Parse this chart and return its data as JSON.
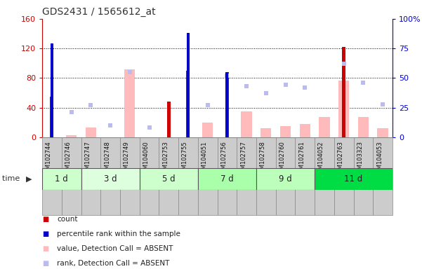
{
  "title": "GDS2431 / 1565612_at",
  "samples": [
    "GSM102744",
    "GSM102746",
    "GSM102747",
    "GSM102748",
    "GSM102749",
    "GSM104060",
    "GSM102753",
    "GSM102755",
    "GSM104051",
    "GSM102756",
    "GSM102757",
    "GSM102758",
    "GSM102760",
    "GSM102761",
    "GSM104052",
    "GSM102763",
    "GSM103323",
    "GSM104053"
  ],
  "time_groups": [
    {
      "label": "1 d",
      "start": 0,
      "end": 2,
      "color": "#ccffcc"
    },
    {
      "label": "3 d",
      "start": 2,
      "end": 5,
      "color": "#ddffdd"
    },
    {
      "label": "5 d",
      "start": 5,
      "end": 8,
      "color": "#ccffcc"
    },
    {
      "label": "7 d",
      "start": 8,
      "end": 11,
      "color": "#aaffaa"
    },
    {
      "label": "9 d",
      "start": 11,
      "end": 14,
      "color": "#bbffbb"
    },
    {
      "label": "11 d",
      "start": 14,
      "end": 18,
      "color": "#00dd44"
    }
  ],
  "count_values": [
    55,
    0,
    0,
    0,
    0,
    0,
    48,
    90,
    0,
    88,
    0,
    0,
    0,
    0,
    0,
    122,
    0,
    0
  ],
  "percentile_values": [
    79,
    0,
    0,
    0,
    0,
    0,
    0,
    88,
    0,
    55,
    0,
    0,
    0,
    0,
    0,
    0,
    0,
    0
  ],
  "value_absent": [
    0,
    3,
    13,
    0,
    92,
    0,
    0,
    0,
    20,
    0,
    35,
    12,
    15,
    18,
    27,
    77,
    27,
    12
  ],
  "rank_absent": [
    0,
    21,
    27,
    10,
    55,
    8,
    0,
    0,
    27,
    52,
    43,
    37,
    44,
    42,
    0,
    62,
    46,
    28
  ],
  "left_ylim": [
    0,
    160
  ],
  "right_ylim": [
    0,
    100
  ],
  "left_yticks": [
    0,
    40,
    80,
    120,
    160
  ],
  "right_yticks": [
    0,
    25,
    50,
    75,
    100
  ],
  "right_yticklabels": [
    "0",
    "25",
    "50",
    "75",
    "100%"
  ],
  "color_count": "#cc0000",
  "color_percentile": "#0000cc",
  "color_value_absent": "#ffbbbb",
  "color_rank_absent": "#bbbbee",
  "bg_plot": "#ffffff",
  "bg_xticklabels": "#cccccc",
  "grid_color": "#000000"
}
